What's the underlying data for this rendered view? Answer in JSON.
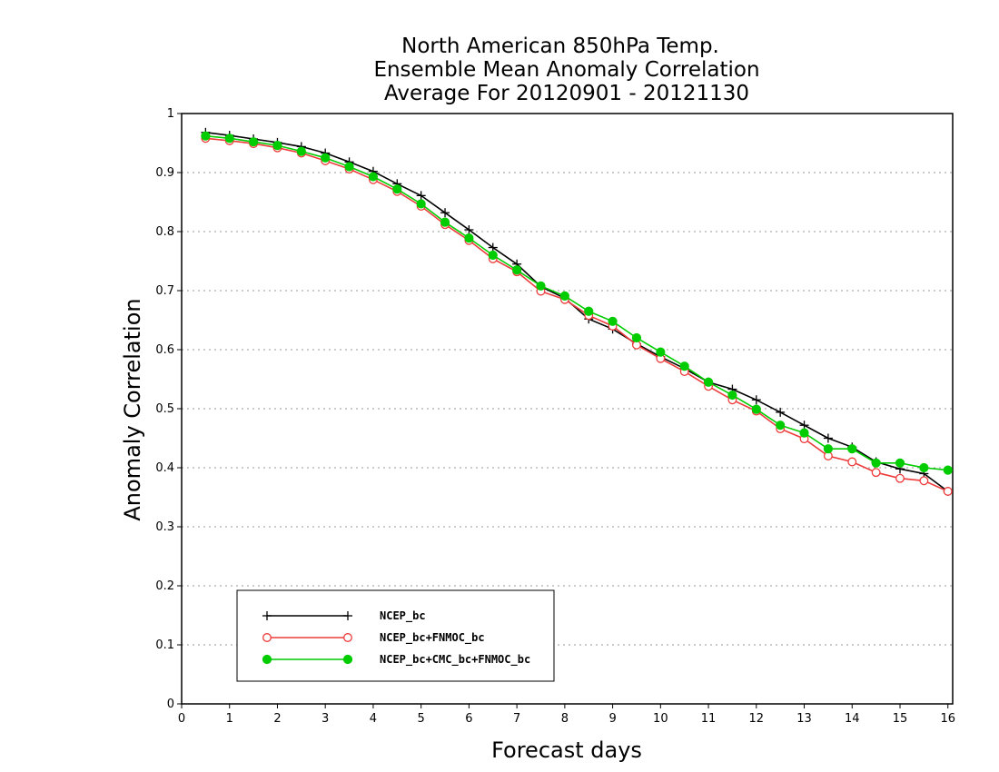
{
  "chart_data": {
    "type": "line",
    "title": [
      "North American 850hPa Temp.",
      "Ensemble Mean Anomaly Correlation",
      "Average For 20120901 - 20121130"
    ],
    "xlabel": "Forecast days",
    "ylabel": "Anomaly Correlation",
    "xlim": [
      0,
      16.1
    ],
    "ylim": [
      0,
      1
    ],
    "xticks": [
      "0",
      "1",
      "2",
      "3",
      "4",
      "5",
      "6",
      "7",
      "8",
      "9",
      "10",
      "11",
      "12",
      "13",
      "14",
      "15",
      "16"
    ],
    "yticks": [
      "0",
      "0.1",
      "0.2",
      "0.3",
      "0.4",
      "0.5",
      "0.6",
      "0.7",
      "0.8",
      "0.9",
      "1"
    ],
    "grid": "horizontal dotted",
    "legend_position": "bottom-left",
    "x": [
      0.5,
      1,
      1.5,
      2,
      2.5,
      3,
      3.5,
      4,
      4.5,
      5,
      5.5,
      6,
      6.5,
      7,
      7.5,
      8,
      8.5,
      9,
      9.5,
      10,
      10.5,
      11,
      11.5,
      12,
      12.5,
      13,
      13.5,
      14,
      14.5,
      15,
      15.5,
      16
    ],
    "series": [
      {
        "name": "NCEP_bc",
        "color": "#000000",
        "marker": "plus",
        "values": [
          0.968,
          0.963,
          0.957,
          0.951,
          0.944,
          0.933,
          0.918,
          0.902,
          0.881,
          0.861,
          0.832,
          0.803,
          0.773,
          0.745,
          0.707,
          0.687,
          0.652,
          0.635,
          0.61,
          0.588,
          0.568,
          0.545,
          0.533,
          0.515,
          0.494,
          0.472,
          0.45,
          0.435,
          0.41,
          0.398,
          0.39,
          0.36
        ]
      },
      {
        "name": "NCEP_bc+FNMOC_bc",
        "color": "#ee3b3b",
        "marker": "open-circle",
        "values": [
          0.958,
          0.954,
          0.949,
          0.942,
          0.933,
          0.92,
          0.906,
          0.888,
          0.868,
          0.843,
          0.812,
          0.785,
          0.754,
          0.732,
          0.699,
          0.685,
          0.658,
          0.64,
          0.608,
          0.585,
          0.563,
          0.538,
          0.515,
          0.496,
          0.466,
          0.449,
          0.42,
          0.41,
          0.392,
          0.382,
          0.378,
          0.36
        ]
      },
      {
        "name": "NCEP_bc+CMC_bc+FNMOC_bc",
        "color": "#00cc00",
        "marker": "filled-circle",
        "values": [
          0.962,
          0.958,
          0.952,
          0.946,
          0.936,
          0.925,
          0.91,
          0.893,
          0.872,
          0.847,
          0.816,
          0.789,
          0.76,
          0.735,
          0.708,
          0.691,
          0.665,
          0.648,
          0.62,
          0.596,
          0.572,
          0.545,
          0.523,
          0.499,
          0.472,
          0.459,
          0.432,
          0.432,
          0.408,
          0.408,
          0.4,
          0.396
        ]
      }
    ]
  }
}
